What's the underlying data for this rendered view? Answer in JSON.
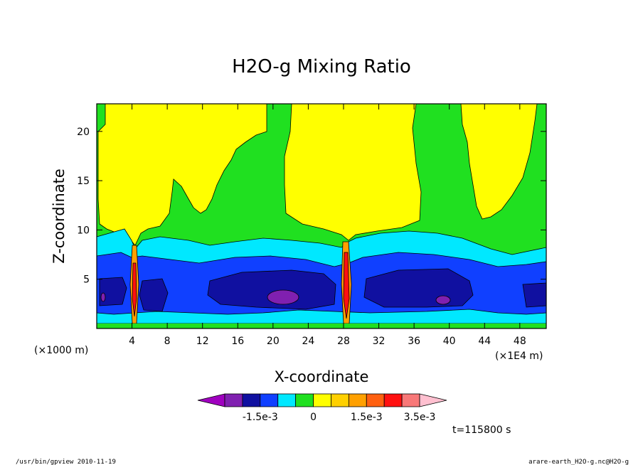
{
  "chart_data": {
    "type": "heatmap",
    "title": "H2O-g Mixing Ratio",
    "xlabel": "X-coordinate",
    "ylabel": "Z-coordinate",
    "x_unit_note": "(×1E4 m)",
    "y_unit_note": "(×1000 m)",
    "xlim": [
      0,
      51
    ],
    "ylim": [
      0,
      22.8
    ],
    "x_ticks": [
      4,
      8,
      12,
      16,
      20,
      24,
      28,
      32,
      36,
      40,
      44,
      48
    ],
    "y_ticks": [
      5,
      10,
      15,
      20
    ],
    "colorbar": {
      "colors": [
        "#a000c0",
        "#8020b0",
        "#1010a0",
        "#1040ff",
        "#00e8ff",
        "#20e020",
        "#ffff00",
        "#ffd000",
        "#ffa000",
        "#ff6010",
        "#ff1010",
        "#f87878",
        "#ffc0d0"
      ],
      "labels": [
        "-1.5e-3",
        "0",
        "1.5e-3",
        "3.5e-3"
      ]
    },
    "time_label": "t=115800 s"
  },
  "footer": {
    "left": "/usr/bin/gpview   2010-11-19",
    "right": "arare-earth_H2O-g.nc@H2O-g"
  }
}
